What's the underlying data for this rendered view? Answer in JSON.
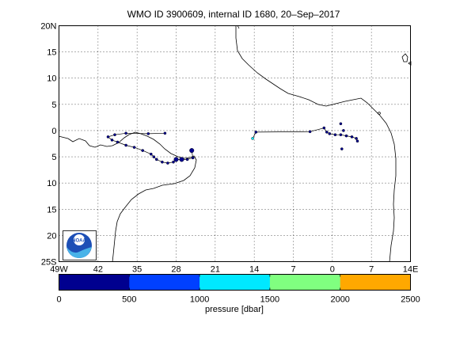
{
  "title": "WMO ID 3900609, internal ID 1680, 20–Sep–2017",
  "map": {
    "lon_range": [
      -49,
      14
    ],
    "lat_range": [
      -25,
      20
    ],
    "lon_ticks": [
      "49W",
      "42",
      "35",
      "28",
      "21",
      "14",
      "7",
      "0",
      "7",
      "14E"
    ],
    "lat_ticks": [
      "20N",
      "15",
      "10",
      "5",
      "0",
      "5",
      "10",
      "15",
      "20",
      "25S"
    ],
    "grid": "dotted"
  },
  "colorbar": {
    "label": "pressure [dbar]",
    "ticks": [
      "0",
      "500",
      "1000",
      "1500",
      "2000",
      "2500"
    ],
    "range": [
      0,
      2500
    ],
    "colors": [
      "#00008f",
      "#0040ff",
      "#00e8ff",
      "#80ff80",
      "#ffa800"
    ]
  },
  "logo": {
    "icon": "noaa-logo-icon",
    "text": "NOAA"
  },
  "trajectory": {
    "west": [
      {
        "lon": -30,
        "lat": -0.5,
        "p": 0
      },
      {
        "lon": -33,
        "lat": -0.6,
        "p": 0
      },
      {
        "lon": -37,
        "lat": -0.5,
        "p": 0
      },
      {
        "lon": -39,
        "lat": -0.8,
        "p": 0
      },
      {
        "lon": -40.2,
        "lat": -1.2,
        "p": 0
      },
      {
        "lon": -39.5,
        "lat": -1.8,
        "p": 0
      },
      {
        "lon": -38.5,
        "lat": -2.2,
        "p": 0
      },
      {
        "lon": -37,
        "lat": -2.8,
        "p": 0
      },
      {
        "lon": -35.5,
        "lat": -3.2,
        "p": 0
      },
      {
        "lon": -34,
        "lat": -3.8,
        "p": 0
      },
      {
        "lon": -32.5,
        "lat": -4.5,
        "p": 0
      },
      {
        "lon": -32,
        "lat": -5,
        "p": 0
      },
      {
        "lon": -31.5,
        "lat": -5.5,
        "p": 0
      },
      {
        "lon": -30.5,
        "lat": -6,
        "p": 0
      },
      {
        "lon": -29.5,
        "lat": -6.2,
        "p": 0
      },
      {
        "lon": -28.5,
        "lat": -6,
        "p": 0
      },
      {
        "lon": -28,
        "lat": -5.5,
        "p": 0
      },
      {
        "lon": -27,
        "lat": -5.5,
        "p": 0
      },
      {
        "lon": -26,
        "lat": -5.5,
        "p": 0
      },
      {
        "lon": -25,
        "lat": -5.2,
        "p": 0
      },
      {
        "lon": -25.2,
        "lat": -3.8,
        "p": 0
      }
    ],
    "east": [
      {
        "lon": -14.3,
        "lat": -1.5,
        "p": 1100
      },
      {
        "lon": -13.7,
        "lat": -0.3,
        "p": 0
      },
      {
        "lon": -4,
        "lat": -0.2,
        "p": 0
      },
      {
        "lon": -1.5,
        "lat": 0.5,
        "p": 0
      },
      {
        "lon": -1,
        "lat": -0.3,
        "p": 0
      },
      {
        "lon": -0.5,
        "lat": -0.6,
        "p": 0
      },
      {
        "lon": 0.5,
        "lat": -0.8,
        "p": 0
      },
      {
        "lon": 1.5,
        "lat": -0.8,
        "p": 0
      },
      {
        "lon": 2.5,
        "lat": -1,
        "p": 0
      },
      {
        "lon": 3.5,
        "lat": -1.2,
        "p": 0
      },
      {
        "lon": 4.3,
        "lat": -1.5,
        "p": 0
      },
      {
        "lon": 4.5,
        "lat": -2,
        "p": 0
      },
      {
        "lon": 2,
        "lat": 0,
        "p": 0
      },
      {
        "lon": 1.5,
        "lat": 1.3,
        "p": 0
      },
      {
        "lon": 1.7,
        "lat": -3.5,
        "p": 0
      }
    ]
  }
}
